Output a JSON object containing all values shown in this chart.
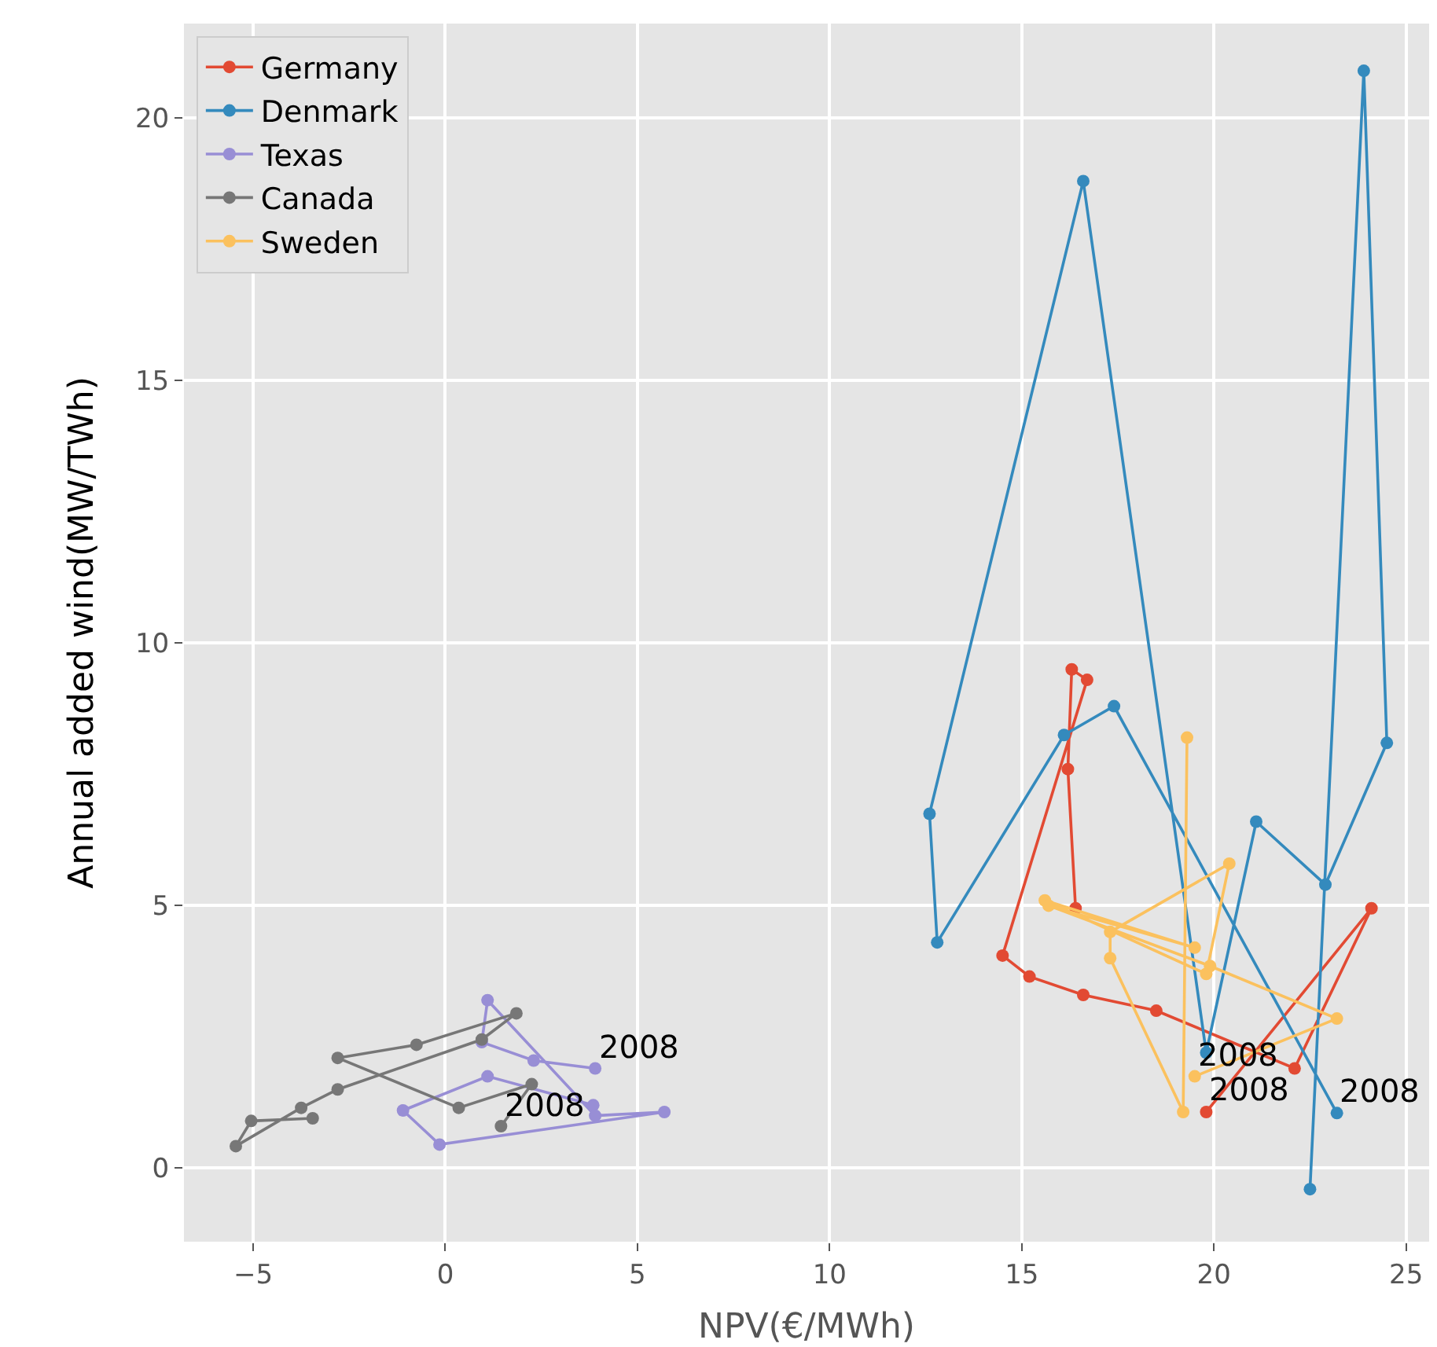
{
  "chart_data": {
    "type": "line",
    "xlabel": "NPV(€/MWh)",
    "ylabel": "Annual added wind(MW/TWh)",
    "xlim": [
      -6.8,
      25.6
    ],
    "ylim": [
      -1.4,
      21.8
    ],
    "xticks": [
      -5,
      0,
      5,
      10,
      15,
      20,
      25
    ],
    "yticks": [
      0,
      5,
      10,
      15,
      20
    ],
    "grid": true,
    "legend": "top left",
    "marker": "circle",
    "line_style": "solid",
    "series": [
      {
        "name": "Germany",
        "color": "#e24a33",
        "x": [
          16.4,
          16.2,
          16.3,
          16.7,
          14.5,
          15.2,
          16.6,
          18.5,
          22.1,
          24.1,
          19.8
        ],
        "values": [
          4.95,
          7.6,
          9.5,
          9.3,
          4.05,
          3.65,
          3.3,
          3.0,
          1.9,
          4.95,
          1.07
        ]
      },
      {
        "name": "Denmark",
        "color": "#348abd",
        "x": [
          22.5,
          23.9,
          24.5,
          22.9,
          21.1,
          19.8,
          16.6,
          12.6,
          12.8,
          16.1,
          17.4,
          23.2
        ],
        "values": [
          -0.4,
          20.9,
          8.1,
          5.4,
          6.6,
          2.2,
          18.8,
          6.75,
          4.3,
          8.25,
          8.8,
          1.05
        ]
      },
      {
        "name": "Texas",
        "color": "#988ed5",
        "x": [
          3.85,
          1.1,
          -1.1,
          -0.15,
          5.7,
          3.9,
          1.1,
          0.95,
          2.3,
          3.9
        ],
        "values": [
          1.2,
          1.75,
          1.1,
          0.45,
          1.07,
          1.0,
          3.2,
          2.4,
          2.05,
          1.9
        ]
      },
      {
        "name": "Canada",
        "color": "#777777",
        "x": [
          -3.45,
          -5.05,
          -5.45,
          -3.75,
          -2.8,
          0.95,
          1.85,
          -0.75,
          -2.8,
          0.35,
          2.25,
          1.45
        ],
        "values": [
          0.95,
          0.9,
          0.42,
          1.15,
          1.5,
          2.45,
          2.95,
          2.35,
          2.1,
          1.15,
          1.6,
          0.8
        ]
      },
      {
        "name": "Sweden",
        "color": "#fbc15e",
        "x": [
          19.3,
          19.2,
          17.3,
          17.3,
          20.4,
          19.8,
          15.6,
          19.5,
          15.7,
          19.9,
          23.2,
          19.5
        ],
        "values": [
          8.2,
          1.07,
          4.0,
          4.5,
          5.8,
          3.7,
          5.1,
          4.2,
          5.0,
          3.85,
          2.85,
          1.75
        ]
      }
    ],
    "annotations": [
      {
        "text": "2008",
        "x": 19.8,
        "y": 1.07
      },
      {
        "text": "2008",
        "x": 23.2,
        "y": 1.05
      },
      {
        "text": "2008",
        "x": 3.9,
        "y": 1.9
      },
      {
        "text": "2008",
        "x": 1.45,
        "y": 0.8
      },
      {
        "text": "2008",
        "x": 19.5,
        "y": 1.75
      }
    ]
  }
}
